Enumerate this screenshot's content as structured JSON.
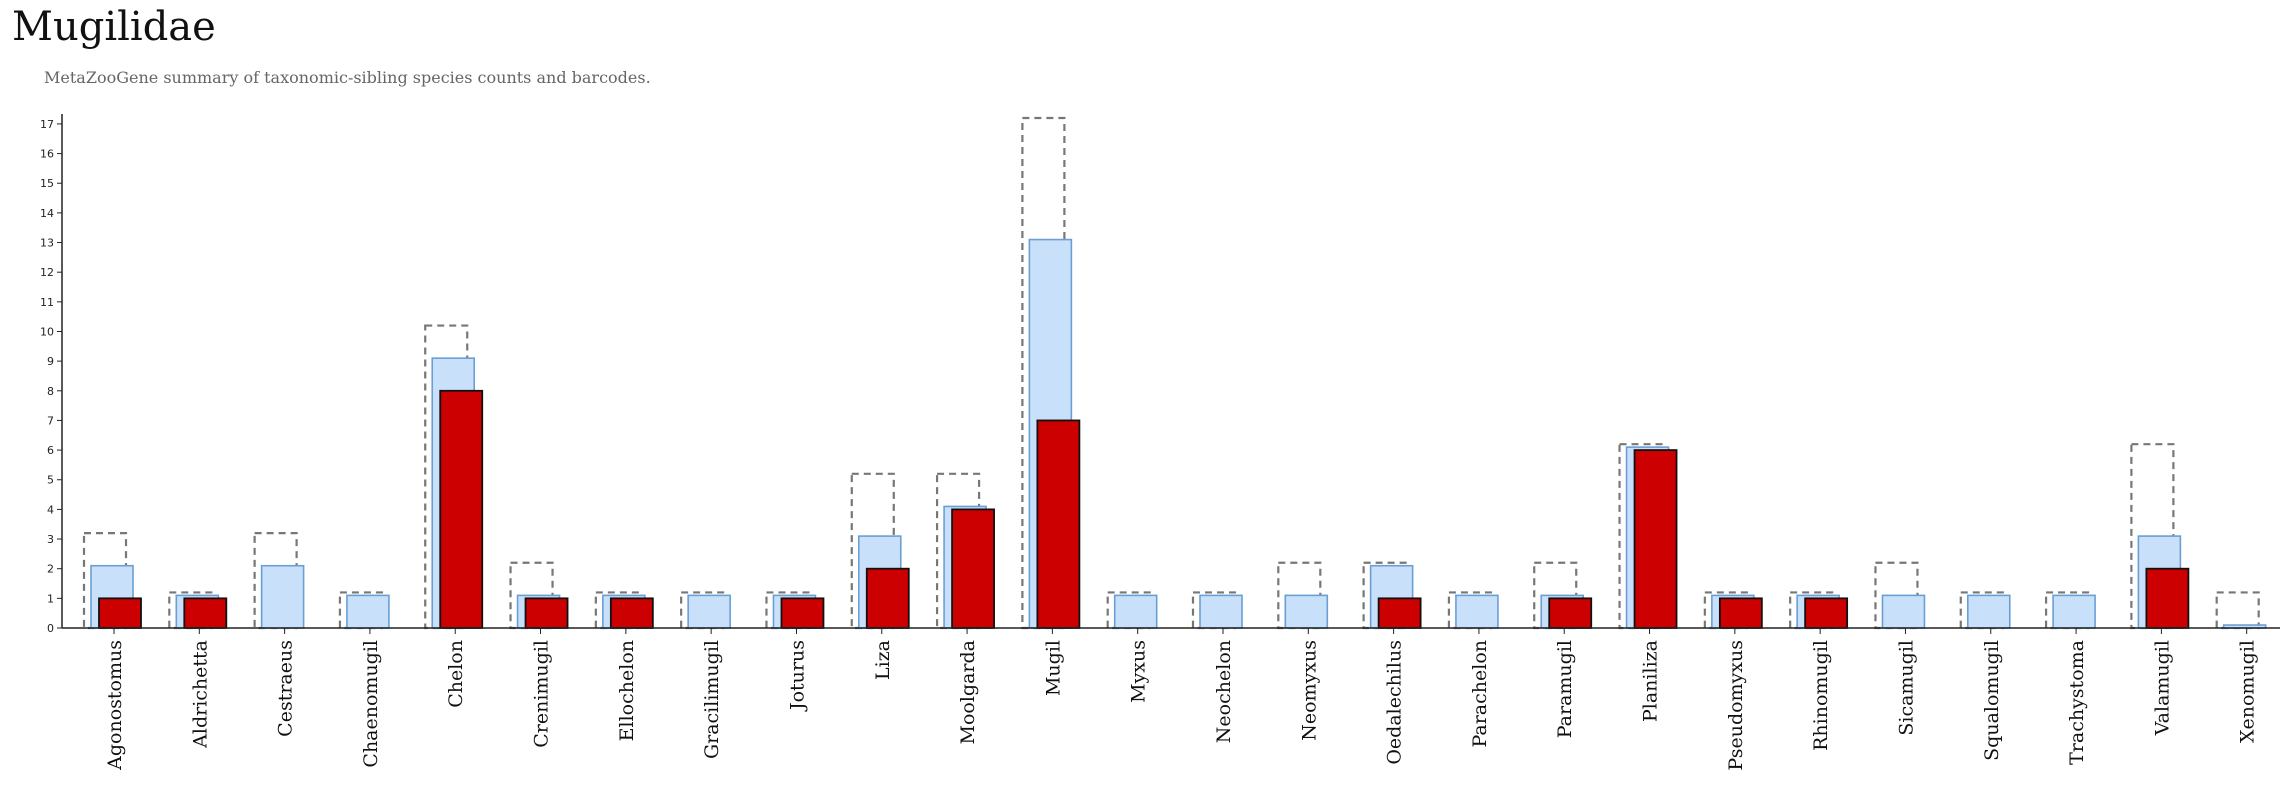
{
  "title": "Mugilidae",
  "subtitle": "MetaZooGene summary of taxonomic-sibling species counts and barcodes.",
  "colors": {
    "dashed_outline": "#777777",
    "light_bar_fill": "#c8e0fa",
    "light_bar_stroke": "#6a9fd4",
    "red_bar_fill": "#cc0000",
    "red_bar_stroke": "#111111",
    "axis": "#222222"
  },
  "chart_data": {
    "type": "bar",
    "ylim": [
      0,
      17.2
    ],
    "yticks": [
      0,
      1,
      2,
      3,
      4,
      5,
      6,
      7,
      8,
      9,
      10,
      11,
      12,
      13,
      14,
      15,
      16,
      17
    ],
    "categories": [
      "Agonostomus",
      "Aldrichetta",
      "Cestraeus",
      "Chaenomugil",
      "Chelon",
      "Crenimugil",
      "Ellochelon",
      "Gracilimugil",
      "Joturus",
      "Liza",
      "Moolgarda",
      "Mugil",
      "Myxus",
      "Neochelon",
      "Neomyxus",
      "Oedalechilus",
      "Parachelon",
      "Paramugil",
      "Planiliza",
      "Pseudomyxus",
      "Rhinomugil",
      "Sicamugil",
      "Squalomugil",
      "Trachystoma",
      "Valamugil",
      "Xenomugil"
    ],
    "series": [
      {
        "style": "dashed-outline",
        "values": [
          3.2,
          1.2,
          3.2,
          1.2,
          10.2,
          2.2,
          1.2,
          1.2,
          1.2,
          5.2,
          5.2,
          17.2,
          1.2,
          1.2,
          2.2,
          2.2,
          1.2,
          2.2,
          6.2,
          1.2,
          1.2,
          2.2,
          1.2,
          1.2,
          6.2,
          1.2
        ]
      },
      {
        "style": "light-blue",
        "values": [
          2.1,
          1.1,
          2.1,
          1.1,
          9.1,
          1.1,
          1.1,
          1.1,
          1.1,
          3.1,
          4.1,
          13.1,
          1.1,
          1.1,
          1.1,
          2.1,
          1.1,
          1.1,
          6.1,
          1.1,
          1.1,
          1.1,
          1.1,
          1.1,
          3.1,
          0.1
        ]
      },
      {
        "style": "red",
        "values": [
          1,
          1,
          0,
          0,
          8,
          1,
          1,
          0,
          1,
          2,
          4,
          7,
          0,
          0,
          0,
          1,
          0,
          1,
          6,
          1,
          1,
          0,
          0,
          0,
          2,
          0
        ]
      }
    ]
  }
}
